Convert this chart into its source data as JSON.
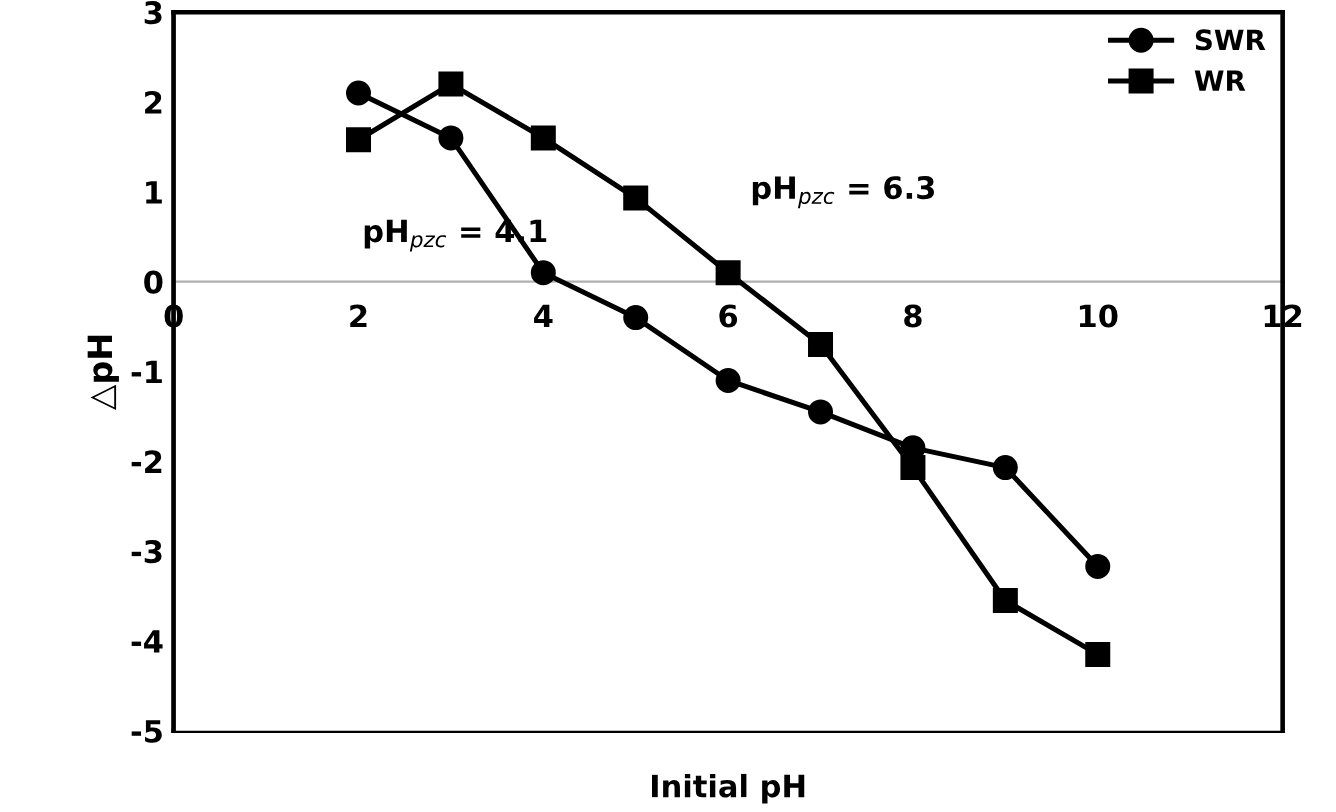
{
  "chart_data": {
    "type": "line",
    "xlabel": "Initial pH",
    "ylabel": "△pH",
    "x": [
      2,
      3,
      4,
      5,
      6,
      7,
      8,
      9,
      10
    ],
    "series": [
      {
        "name": "SWR",
        "color": "#000000",
        "marker": "circle",
        "values": [
          2.1,
          1.6,
          0.1,
          -0.4,
          -1.1,
          -1.45,
          -1.85,
          -2.07,
          -3.17
        ]
      },
      {
        "name": "WR",
        "color": "#000000",
        "marker": "square",
        "values": [
          1.58,
          2.2,
          1.6,
          0.93,
          0.1,
          -0.7,
          -2.07,
          -3.55,
          -4.15
        ]
      }
    ],
    "xlim": [
      0,
      12
    ],
    "xticks": [
      0,
      2,
      4,
      6,
      8,
      10,
      12
    ],
    "ylim": [
      -5,
      3
    ],
    "yticks": [
      -5,
      -4,
      -3,
      -2,
      -1,
      0,
      1,
      2,
      3
    ],
    "annotations": [
      "pH$_{pzc}$ = 4.1",
      "pH$_{pzc}$ = 6.3"
    ],
    "legend": "top right",
    "grid": false,
    "line_style": "solid"
  }
}
